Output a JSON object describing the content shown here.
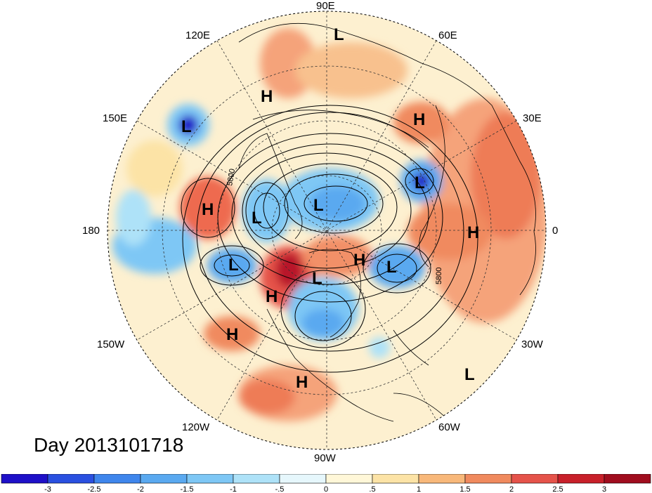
{
  "title_text": "Day 2013101718",
  "longitude_labels": {
    "top": "90E",
    "upper_left": "120E",
    "upper_right": "60E",
    "left_upper": "150E",
    "right_upper": "30E",
    "left": "180",
    "right": "0",
    "left_lower": "150W",
    "right_lower": "30W",
    "lower_left": "120W",
    "lower_right": "60W",
    "bottom": "90W"
  },
  "contour_labels": [
    "5800",
    "5800"
  ],
  "pressure_centers": [
    {
      "label": "L",
      "lon_lat_desc": "90E high"
    },
    {
      "label": "H",
      "lon_lat_desc": "Siberia"
    },
    {
      "label": "L",
      "lon_lat_desc": "NW Pacific"
    },
    {
      "label": "H",
      "lon_lat_desc": "Urals"
    },
    {
      "label": "L",
      "lon_lat_desc": "Scandinavia"
    },
    {
      "label": "H",
      "lon_lat_desc": "N Pacific"
    },
    {
      "label": "L",
      "lon_lat_desc": "E Siberia"
    },
    {
      "label": "L",
      "lon_lat_desc": "Arctic"
    },
    {
      "label": "H",
      "lon_lat_desc": "Europe"
    },
    {
      "label": "L",
      "lon_lat_desc": "Alaska"
    },
    {
      "label": "H",
      "lon_lat_desc": "Greenland"
    },
    {
      "label": "L",
      "lon_lat_desc": "N Atlantic"
    },
    {
      "label": "L",
      "lon_lat_desc": "Canada"
    },
    {
      "label": "H",
      "lon_lat_desc": "Gulf of Alaska"
    },
    {
      "label": "H",
      "lon_lat_desc": "E Pacific"
    },
    {
      "label": "H",
      "lon_lat_desc": "Mexico"
    },
    {
      "label": "L",
      "lon_lat_desc": "Mid Atlantic"
    }
  ],
  "colorbar": {
    "tick_labels": [
      "-3",
      "-2.5",
      "-2",
      "-1.5",
      "-1",
      "-.5",
      "0",
      ".5",
      "1",
      "1.5",
      "2",
      "2.5",
      "3"
    ],
    "colors": [
      "#1e10c8",
      "#2a50e0",
      "#3f86ec",
      "#5aa9f0",
      "#7ec7f5",
      "#aee2f8",
      "#e6f7fc",
      "#fff7d8",
      "#fce3a6",
      "#f8b87a",
      "#f08a5e",
      "#e5534a",
      "#c8202a",
      "#a00d1e"
    ]
  },
  "colors": {
    "contour_line": "#000000",
    "grid_line": "#333333",
    "land_outline": "#000000"
  }
}
